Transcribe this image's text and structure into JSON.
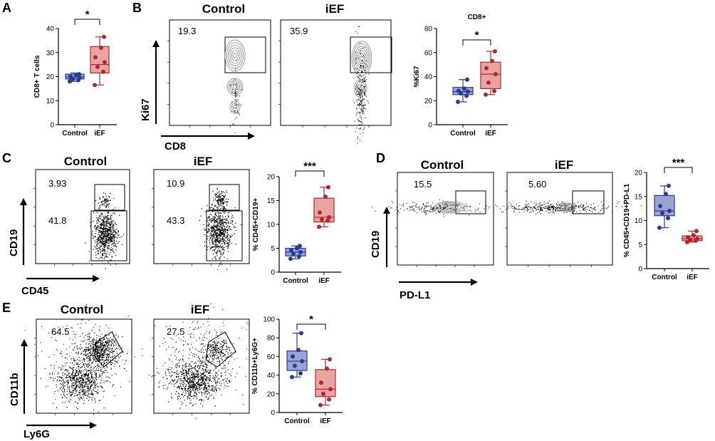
{
  "panels": {
    "A": {
      "label": "A"
    },
    "B": {
      "label": "B",
      "title_left": "Control",
      "title_right": "iEF",
      "gate_left": "19.3",
      "gate_right": "35.9",
      "xlabel": "CD8",
      "ylabel": "Ki67"
    },
    "C": {
      "label": "C",
      "title_left": "Control",
      "title_right": "iEF",
      "gate_left_top": "3.93",
      "gate_left_bottom": "41.8",
      "gate_right_top": "10.9",
      "gate_right_bottom": "43.3",
      "xlabel": "CD45",
      "ylabel": "CD19"
    },
    "D": {
      "label": "D",
      "title_left": "Control",
      "title_right": "iEF",
      "gate_left": "15.5",
      "gate_right": "5.60",
      "xlabel": "PD-L1",
      "ylabel": "CD19"
    },
    "E": {
      "label": "E",
      "title_left": "Control",
      "title_right": "iEF",
      "gate_left": "64.5",
      "gate_right": "27.5",
      "xlabel": "Ly6G",
      "ylabel": "CD11b"
    }
  },
  "chart_data": [
    {
      "type": "box",
      "id": "A",
      "title": "",
      "ylabel": "CD8+ T cells",
      "ylim": [
        0,
        40
      ],
      "yticks": [
        0,
        10,
        20,
        30,
        40
      ],
      "categories": [
        "Control",
        "iEF"
      ],
      "significance": "*",
      "colors": [
        "#2e3a8c",
        "#b0282e"
      ],
      "fills": [
        "#9aa3d6",
        "#e9a3a3"
      ],
      "series": [
        {
          "q1": 19,
          "median": 19.8,
          "q3": 21,
          "min": 18,
          "max": 21.5,
          "points": [
            18,
            18.5,
            19,
            19.5,
            20,
            20.5,
            21
          ]
        },
        {
          "q1": 21.5,
          "median": 25,
          "q3": 32.5,
          "min": 16.5,
          "max": 36.5,
          "points": [
            16.5,
            22,
            24,
            26,
            28,
            32,
            36.5
          ]
        }
      ]
    },
    {
      "type": "box",
      "id": "B",
      "title": "CD8+",
      "ylabel": "%Ki67",
      "ylim": [
        0,
        80
      ],
      "yticks": [
        0,
        20,
        40,
        60,
        80
      ],
      "categories": [
        "Control",
        "iEF"
      ],
      "significance": "*",
      "colors": [
        "#2e3a8c",
        "#b0282e"
      ],
      "fills": [
        "#9aa3d6",
        "#e9a3a3"
      ],
      "series": [
        {
          "q1": 25,
          "median": 27.5,
          "q3": 31,
          "min": 19,
          "max": 37.5,
          "points": [
            19,
            24,
            26,
            27.5,
            28,
            30,
            37.5
          ]
        },
        {
          "q1": 30,
          "median": 42,
          "q3": 52,
          "min": 25,
          "max": 61,
          "points": [
            25,
            28,
            35,
            42,
            47,
            53,
            61
          ]
        }
      ]
    },
    {
      "type": "box",
      "id": "C",
      "title": "",
      "ylabel": "% CD45+CD19+",
      "ylim": [
        0,
        20
      ],
      "yticks": [
        0,
        5,
        10,
        15,
        20
      ],
      "categories": [
        "Control",
        "iEF"
      ],
      "significance": "***",
      "colors": [
        "#2e3a8c",
        "#b0282e"
      ],
      "fills": [
        "#9aa3d6",
        "#e9a3a3"
      ],
      "series": [
        {
          "q1": 3.4,
          "median": 4.2,
          "q3": 5,
          "min": 2.8,
          "max": 5.5,
          "points": [
            2.8,
            3.3,
            3.8,
            4.2,
            4.6,
            5,
            5.5
          ]
        },
        {
          "q1": 10.5,
          "median": 11.5,
          "q3": 15.5,
          "min": 9.5,
          "max": 17.8,
          "points": [
            9.5,
            10.8,
            11,
            11.5,
            12.5,
            15.8,
            17.8
          ]
        }
      ]
    },
    {
      "type": "box",
      "id": "D",
      "title": "",
      "ylabel": "% CD45+CD19+PD-L1",
      "ylim": [
        0,
        20
      ],
      "yticks": [
        0,
        5,
        10,
        15,
        20
      ],
      "categories": [
        "Control",
        "iEF"
      ],
      "significance": "***",
      "colors": [
        "#2e3a8c",
        "#b0282e"
      ],
      "fills": [
        "#9aa3d6",
        "#e9a3a3"
      ],
      "series": [
        {
          "q1": 11,
          "median": 12,
          "q3": 15.2,
          "min": 8.5,
          "max": 17.2,
          "points": [
            8.5,
            10.5,
            11.5,
            12,
            13,
            15.5,
            17.2
          ]
        },
        {
          "q1": 5.8,
          "median": 6.2,
          "q3": 6.8,
          "min": 5.5,
          "max": 7.8,
          "points": [
            5.5,
            5.8,
            6,
            6.2,
            6.5,
            6.9,
            7.8
          ]
        }
      ]
    },
    {
      "type": "box",
      "id": "E",
      "title": "",
      "ylabel": "% CD11b+Ly6G+",
      "ylim": [
        0,
        100
      ],
      "yticks": [
        0,
        20,
        40,
        60,
        80,
        100
      ],
      "categories": [
        "Control",
        "iEF"
      ],
      "significance": "*",
      "colors": [
        "#2e3a8c",
        "#b0282e"
      ],
      "fills": [
        "#9aa3d6",
        "#e9a3a3"
      ],
      "series": [
        {
          "q1": 45,
          "median": 55,
          "q3": 66,
          "min": 38,
          "max": 85,
          "points": [
            38,
            42,
            50,
            55,
            60,
            67,
            85
          ]
        },
        {
          "q1": 17,
          "median": 25,
          "q3": 46,
          "min": 8,
          "max": 57,
          "points": [
            8,
            14,
            20,
            25,
            32,
            47,
            57
          ]
        }
      ]
    }
  ]
}
